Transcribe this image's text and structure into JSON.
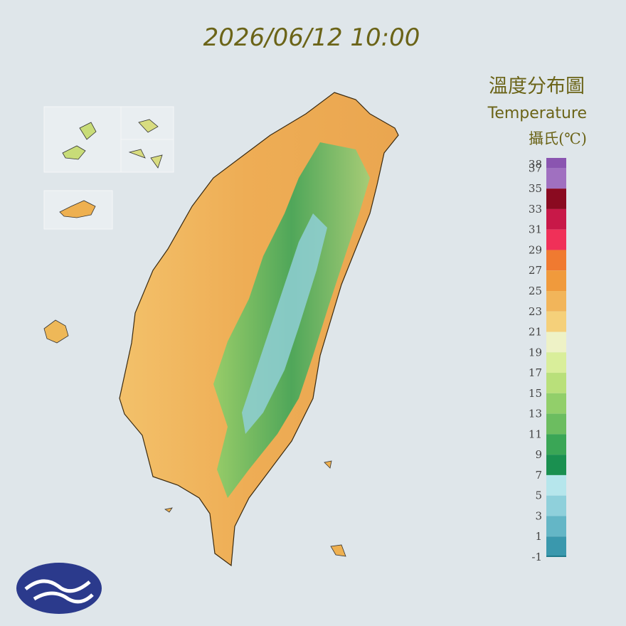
{
  "header": {
    "datetime": "2026/06/12 10:00"
  },
  "legend": {
    "title": "溫度分布圖",
    "subtitle": "Temperature",
    "unit": "攝氏(℃)",
    "labels": [
      38,
      37,
      35,
      33,
      31,
      29,
      27,
      25,
      23,
      21,
      19,
      17,
      15,
      13,
      11,
      9,
      7,
      5,
      3,
      1,
      -1
    ],
    "colors": [
      "#8a55b0",
      "#a070c0",
      "#8a0a20",
      "#c81848",
      "#f03058",
      "#f07a30",
      "#f09a3c",
      "#f2b55a",
      "#f5d07a",
      "#eef2c6",
      "#d9ee9a",
      "#b9e07a",
      "#92cf6a",
      "#6cbd60",
      "#3aa656",
      "#1a9050",
      "#b6e6ec",
      "#8fd0db",
      "#64b6c6",
      "#3a98ad",
      "#1f7a8c"
    ]
  }
}
